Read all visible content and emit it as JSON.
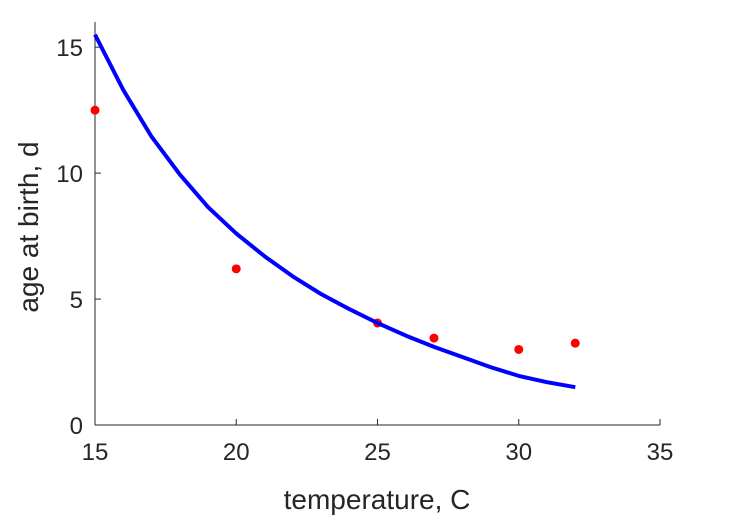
{
  "chart_data": {
    "type": "scatter",
    "title": "",
    "xlabel": "temperature, C",
    "ylabel": "age at birth, d",
    "xlim": [
      15,
      35
    ],
    "ylim": [
      0,
      16
    ],
    "xticks": [
      15,
      20,
      25,
      30,
      35
    ],
    "yticks": [
      0,
      5,
      10,
      15
    ],
    "grid": false,
    "series": [
      {
        "kind": "points",
        "color": "#ff0000",
        "x": [
          15,
          20,
          25,
          27,
          30,
          32
        ],
        "y": [
          12.5,
          6.2,
          4.05,
          3.45,
          3.0,
          3.25
        ]
      },
      {
        "kind": "line",
        "color": "#0000ff",
        "x": [
          15,
          16,
          17,
          18,
          19,
          20,
          21,
          22,
          23,
          24,
          25,
          26,
          27,
          28,
          29,
          30,
          31,
          32
        ],
        "y": [
          15.5,
          13.3,
          11.45,
          9.95,
          8.65,
          7.6,
          6.7,
          5.9,
          5.2,
          4.6,
          4.05,
          3.55,
          3.1,
          2.7,
          2.3,
          1.95,
          1.7,
          1.5
        ]
      }
    ]
  }
}
